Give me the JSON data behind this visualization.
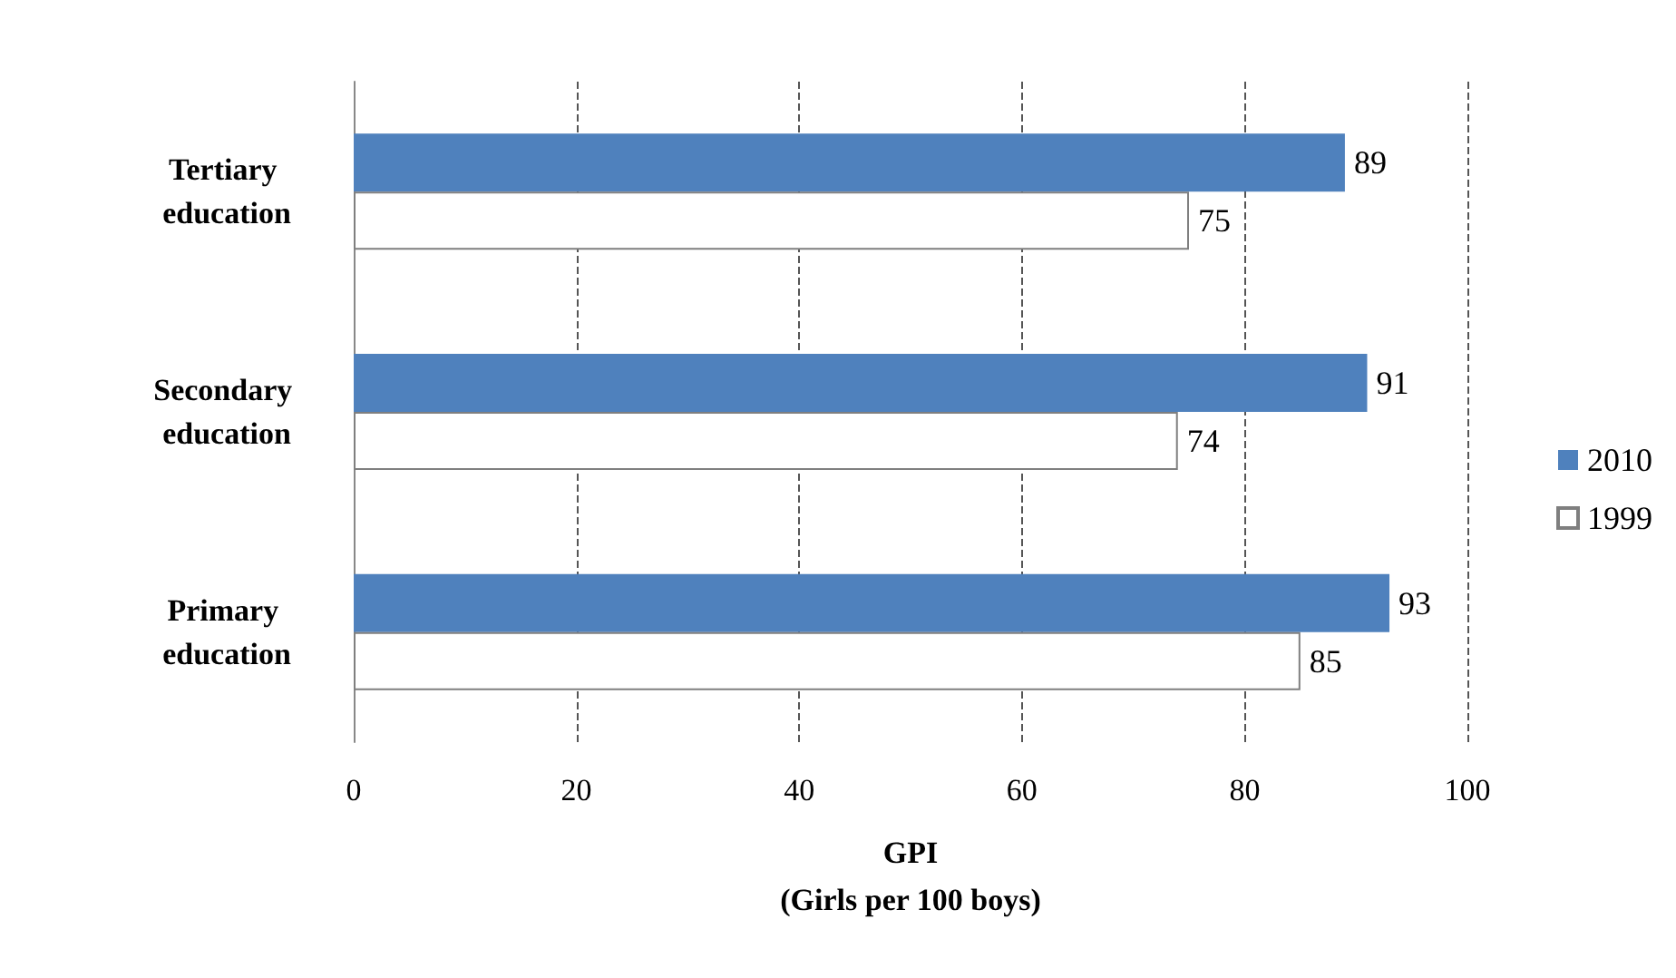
{
  "chart_data": {
    "type": "bar",
    "orientation": "horizontal",
    "xlabel": "GPI\n(Girls per 100 boys)",
    "categories": [
      "Tertiary education",
      "Secondary education",
      "Primary education"
    ],
    "series": [
      {
        "name": "2010",
        "color": "#4f81bd",
        "values": [
          89,
          91,
          93
        ]
      },
      {
        "name": "1999",
        "color": "#ffffff",
        "values": [
          75,
          74,
          85
        ]
      }
    ],
    "xlim": [
      0,
      100
    ],
    "xticks": [
      0,
      20,
      40,
      60,
      80,
      100
    ],
    "grid": "x",
    "legend": "right",
    "data_labels": true
  }
}
